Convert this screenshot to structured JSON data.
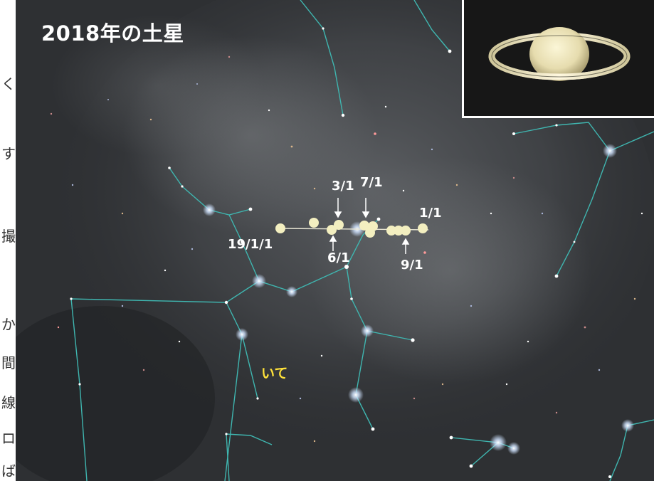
{
  "title": "2018年の土星",
  "constellation_name": "いて",
  "date_labels": {
    "jan_2019": "19/1/1",
    "mar": "3/1",
    "jun": "6/1",
    "jul": "7/1",
    "sep": "9/1",
    "jan": "1/1"
  },
  "edge_text": [
    "く",
    "す",
    "撮",
    "か",
    "間",
    "線",
    "ロ",
    "ば"
  ],
  "colors": {
    "sky": "#2e3033",
    "constellation_line": "#3fb6b0",
    "saturn_marker": "#f3efc0",
    "title_text": "#ffffff",
    "constellation_label": "#ffe23a"
  }
}
